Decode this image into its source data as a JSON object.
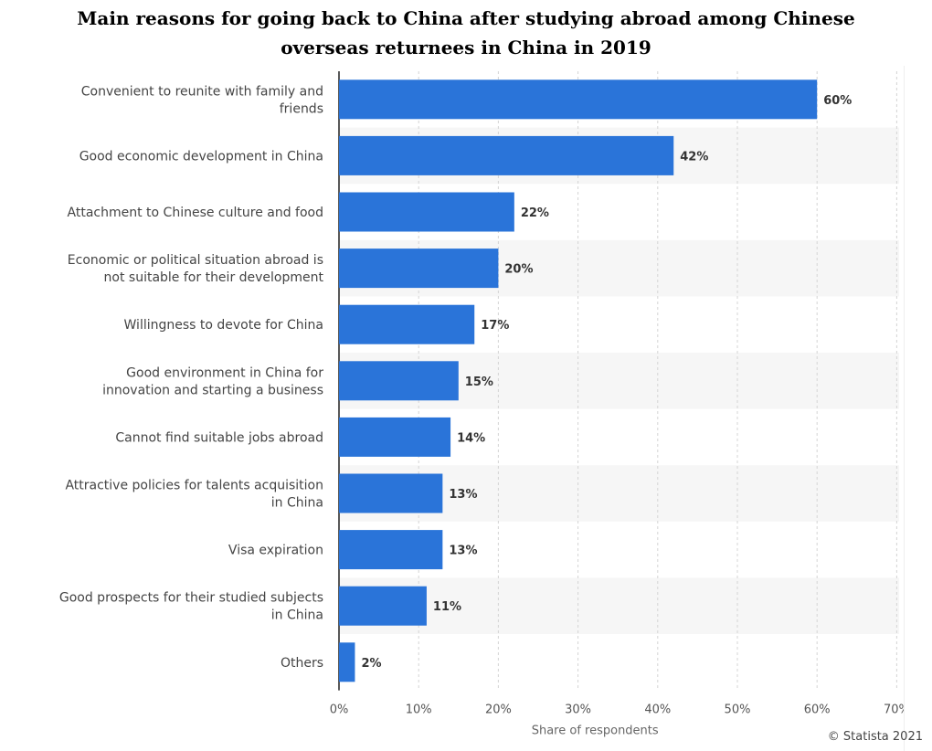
{
  "title_lines": [
    "Main reasons for going back to China after studying abroad among Chinese",
    "overseas returnees in China in 2019"
  ],
  "credit": "© Statista 2021",
  "chart_data": {
    "type": "bar",
    "orientation": "horizontal",
    "title": "Main reasons for going back to China after studying abroad among Chinese overseas returnees in China in 2019",
    "categories": [
      [
        "Convenient to reunite with family and",
        "friends"
      ],
      [
        "Good economic development in China"
      ],
      [
        "Attachment to Chinese culture and food"
      ],
      [
        "Economic or political situation abroad is",
        "not suitable for their development"
      ],
      [
        "Willingness to devote for China"
      ],
      [
        "Good environment in China for",
        "innovation and starting a business"
      ],
      [
        "Cannot find suitable jobs abroad"
      ],
      [
        "Attractive policies for talents acquisition",
        "in China"
      ],
      [
        "Visa expiration"
      ],
      [
        "Good prospects for their studied subjects",
        "in China"
      ],
      [
        "Others"
      ]
    ],
    "values": [
      60,
      42,
      22,
      20,
      17,
      15,
      14,
      13,
      13,
      11,
      2
    ],
    "value_suffix": "%",
    "xlabel": "Share of respondents",
    "ylabel": "",
    "xlim": [
      0,
      70
    ],
    "xticks": [
      "0%",
      "10%",
      "20%",
      "30%",
      "40%",
      "50%",
      "60%",
      "70%"
    ],
    "grid": true,
    "bar_color": "#2a74d9",
    "stripe_color": "#f6f6f6"
  }
}
